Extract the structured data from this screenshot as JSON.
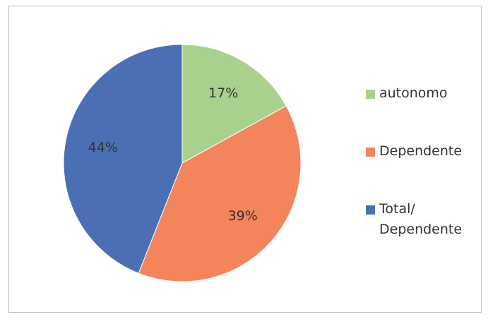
{
  "chart_data": {
    "type": "pie",
    "categories": [
      "autonomo",
      "Dependente",
      "Total/ Dependente"
    ],
    "values": [
      17,
      39,
      44
    ],
    "value_labels": [
      "17%",
      "39%",
      "44%"
    ],
    "colors": [
      "#a9d18e",
      "#f4845c",
      "#4a6fb5"
    ],
    "legend": "right"
  }
}
